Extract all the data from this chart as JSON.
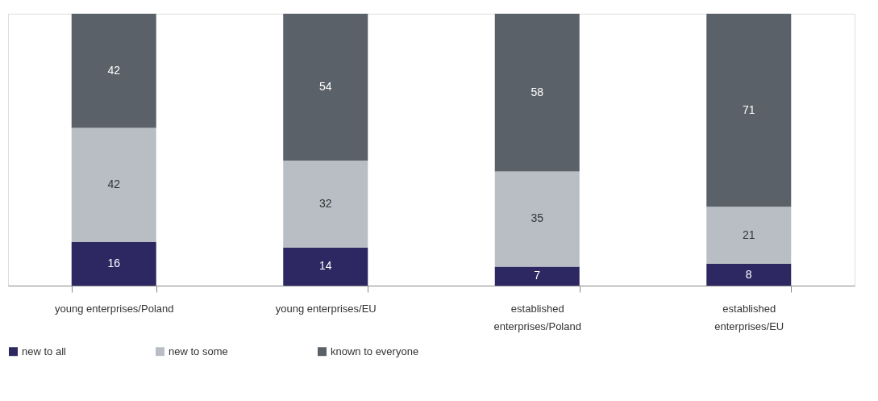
{
  "chart_data": {
    "type": "bar",
    "stacked": true,
    "data_labels": true,
    "legend": "bottom",
    "grid": false,
    "categories": [
      "young enterprises/Poland",
      "young enterprises/EU",
      "established enterprises/Poland",
      "established enterprises/EU"
    ],
    "series": [
      {
        "name": "new to all",
        "color": "#2e2862",
        "values": [
          16,
          14,
          7,
          8
        ]
      },
      {
        "name": "new to some",
        "color": "#b9bec5",
        "values": [
          42,
          32,
          35,
          21
        ]
      },
      {
        "name": "known to everyone",
        "color": "#5b6168",
        "values": [
          42,
          54,
          58,
          71
        ]
      }
    ]
  }
}
